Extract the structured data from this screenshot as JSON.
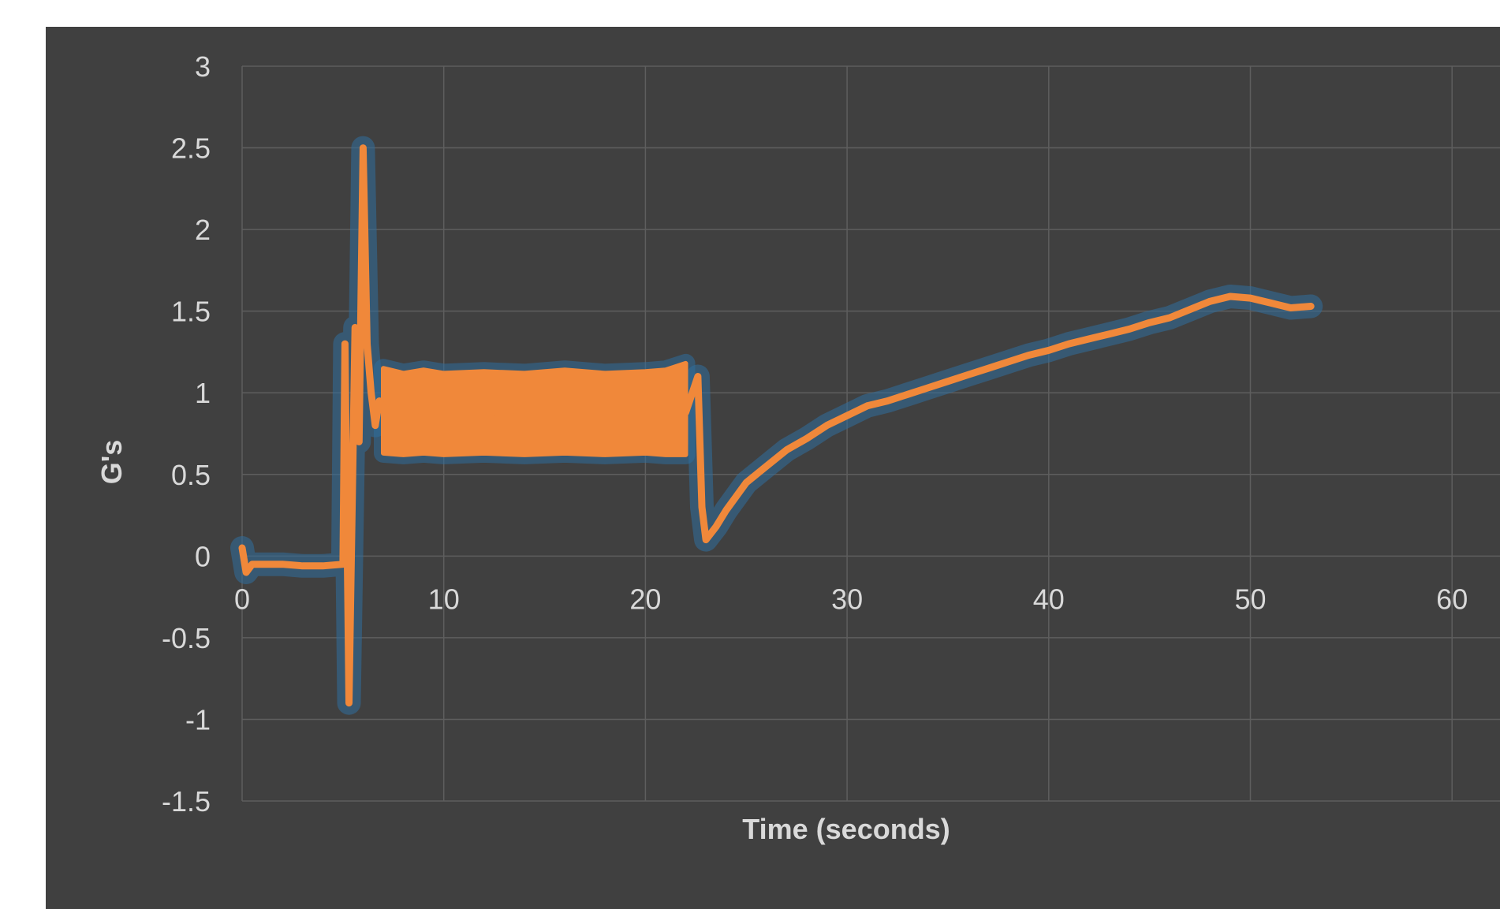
{
  "chart_data": {
    "type": "line",
    "title": "",
    "xlabel": "Time (seconds)",
    "ylabel": "G's",
    "xlim": [
      0,
      60
    ],
    "ylim": [
      -1.5,
      3
    ],
    "xticks": [
      0,
      10,
      20,
      30,
      40,
      50,
      60
    ],
    "yticks": [
      -1.5,
      -1,
      -0.5,
      0,
      0.5,
      1,
      1.5,
      2,
      2.5,
      3
    ],
    "xtick_labels": [
      "0",
      "10",
      "20",
      "30",
      "40",
      "50",
      "60"
    ],
    "ytick_labels": [
      "-1.5",
      "-1",
      "-0.5",
      "0",
      "0.5",
      "1",
      "1.5",
      "2",
      "2.5",
      "3"
    ],
    "grid": true,
    "legend": "none",
    "colors": {
      "background": "#404040",
      "series": "#f0883a",
      "glow": "#2f6d9c",
      "grid": "#5e5e5e",
      "text": "#d9d9d9"
    },
    "series": [
      {
        "x": [
          0,
          0.2,
          0.5,
          1,
          2,
          3,
          4,
          5,
          5.1,
          5.3,
          5.6,
          5.8,
          6.0,
          6.2,
          6.4,
          6.6,
          6.8,
          7.0,
          8,
          9,
          10,
          12,
          14,
          16,
          18,
          20,
          21,
          22,
          22.6,
          22.8,
          23.0,
          23.5,
          24,
          25,
          26,
          27,
          28,
          29,
          30,
          31,
          32,
          33,
          34,
          35,
          36,
          37,
          38,
          39,
          40,
          41,
          42,
          43,
          44,
          45,
          46,
          47,
          48,
          49,
          50,
          51,
          52,
          53
        ],
        "y": [
          0.05,
          -0.1,
          -0.05,
          -0.05,
          -0.05,
          -0.06,
          -0.06,
          -0.05,
          1.3,
          -0.9,
          1.4,
          0.7,
          2.5,
          1.3,
          1.0,
          0.8,
          0.95,
          0.9,
          0.88,
          0.9,
          0.9,
          0.88,
          0.9,
          0.87,
          0.88,
          0.87,
          0.86,
          0.88,
          1.1,
          0.3,
          0.1,
          0.18,
          0.28,
          0.45,
          0.55,
          0.65,
          0.72,
          0.8,
          0.86,
          0.92,
          0.95,
          0.99,
          1.03,
          1.07,
          1.11,
          1.15,
          1.19,
          1.23,
          1.26,
          1.3,
          1.33,
          1.36,
          1.39,
          1.43,
          1.46,
          1.51,
          1.56,
          1.59,
          1.58,
          1.55,
          1.52,
          1.53
        ],
        "y_band_low": [
          null,
          null,
          null,
          null,
          null,
          null,
          null,
          null,
          null,
          null,
          null,
          null,
          null,
          null,
          null,
          null,
          null,
          0.63,
          0.62,
          0.63,
          0.62,
          0.63,
          0.62,
          0.63,
          0.62,
          0.63,
          0.62,
          0.62
        ],
        "y_band_high": [
          null,
          null,
          null,
          null,
          null,
          null,
          null,
          null,
          null,
          null,
          null,
          null,
          null,
          null,
          null,
          null,
          null,
          1.15,
          1.12,
          1.14,
          1.12,
          1.13,
          1.12,
          1.14,
          1.12,
          1.13,
          1.14,
          1.18
        ]
      }
    ]
  }
}
